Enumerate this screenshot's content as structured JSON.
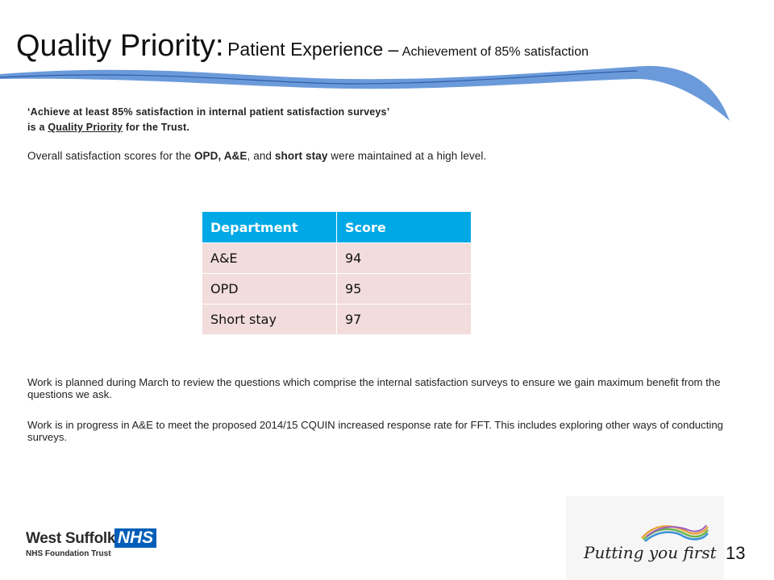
{
  "title": {
    "main": "Quality Priority:",
    "sub1": "Patient Experience –",
    "sub2": "Achievement of 85% satisfaction"
  },
  "quote": {
    "line1": "‘Achieve at least 85% satisfaction in internal patient satisfaction surveys’",
    "line2_pre": "is a",
    "line2_link": "Quality Priority",
    "line2_post": "for the Trust."
  },
  "overall": {
    "pre": "Overall satisfaction scores for the",
    "bold1": "OPD, A&E",
    "mid": ", and",
    "bold2": "short stay",
    "post": "were maintained at a high level."
  },
  "table": {
    "headers": [
      "Department",
      "Score"
    ],
    "rows": [
      [
        "A&E",
        "94"
      ],
      [
        "OPD",
        "95"
      ],
      [
        "Short stay",
        "97"
      ]
    ]
  },
  "work": {
    "p1": "Work is planned during March to review the questions which comprise the internal satisfaction surveys to ensure we gain maximum benefit from the questions we ask.",
    "p2": "Work is in progress in A&E to meet the proposed 2014/15 CQUIN increased response rate for FFT. This includes exploring other ways of conducting surveys."
  },
  "footer": {
    "org_name": "West Suffolk",
    "nhs": "NHS",
    "org_sub": "NHS Foundation Trust",
    "tagline": "Putting you first",
    "page_number": "13"
  },
  "colors": {
    "header_blue": "#00a9e6",
    "row_pink": "#f2dcdc",
    "nhs_blue": "#005eb8",
    "swoosh": "#5b8fd6"
  }
}
